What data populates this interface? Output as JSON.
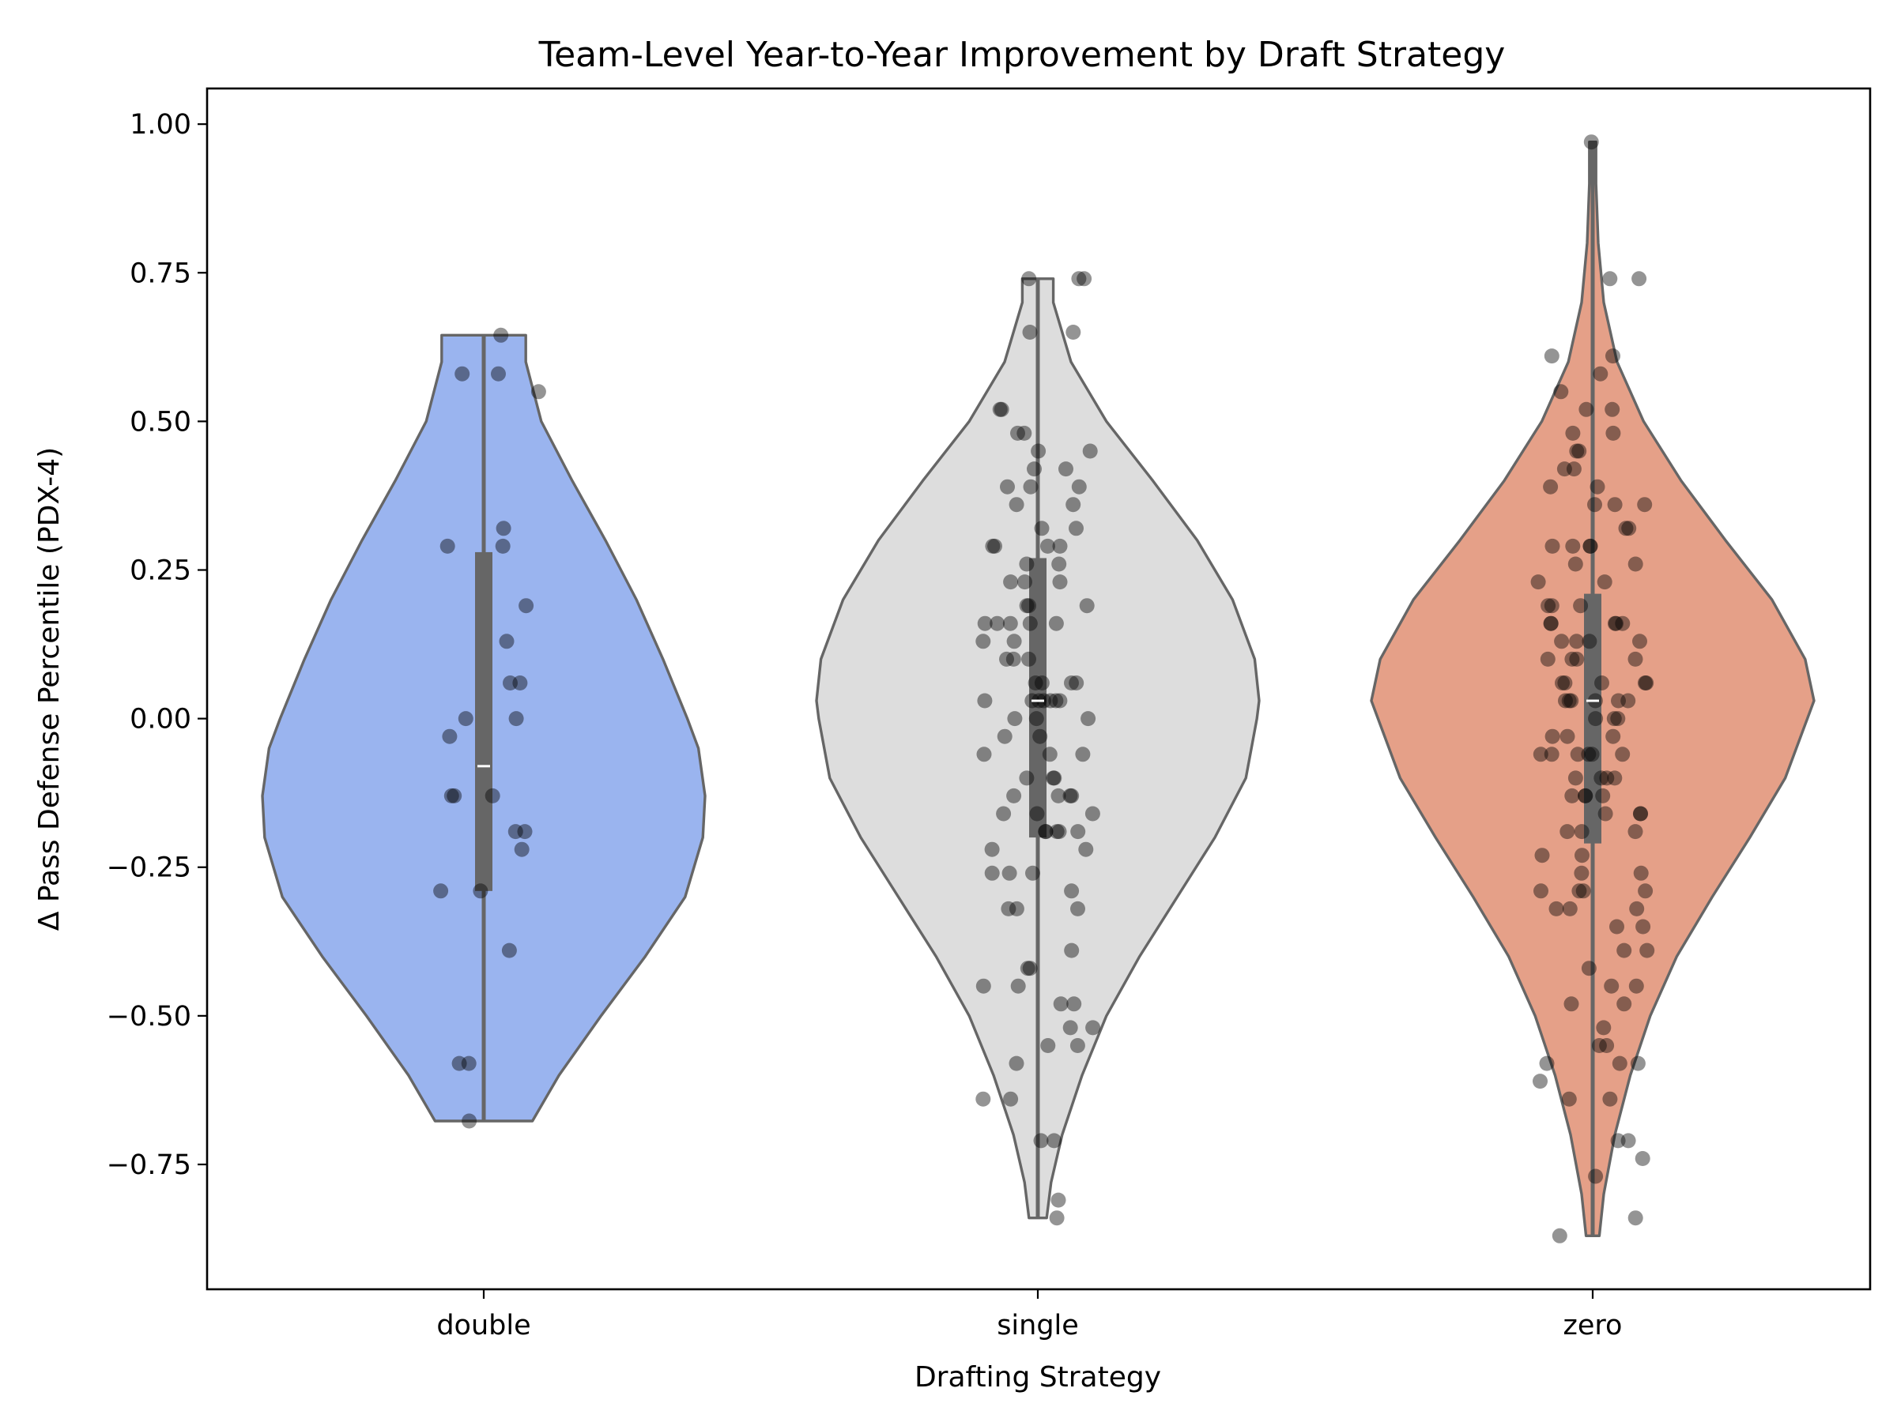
{
  "chart_data": {
    "type": "violin",
    "title": "Team-Level Year-to-Year Improvement by Draft Strategy",
    "xlabel": "Drafting Strategy",
    "ylabel": "Δ Pass Defense Percentile (PDX-4)",
    "ylim": [
      -0.96,
      1.06
    ],
    "yticks": [
      -0.75,
      -0.5,
      -0.25,
      0.0,
      0.25,
      0.5,
      0.75,
      1.0
    ],
    "ytick_labels": [
      "−0.75",
      "−0.50",
      "−0.25",
      "0.00",
      "0.25",
      "0.50",
      "0.75",
      "1.00"
    ],
    "categories": [
      "double",
      "single",
      "zero"
    ],
    "grid": false,
    "series": [
      {
        "category": "double",
        "color": "#9ab4ef",
        "range": [
          -0.677,
          0.645
        ],
        "quartiles": [
          -0.29,
          0.28
        ],
        "median": -0.08,
        "density_shape": [
          [
            -0.677,
            0.22
          ],
          [
            -0.6,
            0.34
          ],
          [
            -0.5,
            0.53
          ],
          [
            -0.4,
            0.73
          ],
          [
            -0.3,
            0.91
          ],
          [
            -0.2,
            0.99
          ],
          [
            -0.13,
            1.0
          ],
          [
            -0.05,
            0.97
          ],
          [
            0.0,
            0.92
          ],
          [
            0.1,
            0.81
          ],
          [
            0.2,
            0.69
          ],
          [
            0.3,
            0.55
          ],
          [
            0.4,
            0.4
          ],
          [
            0.5,
            0.26
          ],
          [
            0.6,
            0.19
          ],
          [
            0.645,
            0.19
          ]
        ],
        "points": [
          0.645,
          0.58,
          0.58,
          0.55,
          0.32,
          0.29,
          0.29,
          0.19,
          0.13,
          0.06,
          0.06,
          0.0,
          0.0,
          -0.03,
          -0.13,
          -0.13,
          -0.13,
          -0.19,
          -0.19,
          -0.22,
          -0.29,
          -0.29,
          -0.39,
          -0.58,
          -0.58,
          -0.677
        ]
      },
      {
        "category": "single",
        "color": "#dddddd",
        "range": [
          -0.84,
          0.74
        ],
        "quartiles": [
          -0.2,
          0.27
        ],
        "median": 0.03,
        "density_shape": [
          [
            -0.84,
            0.04
          ],
          [
            -0.78,
            0.06
          ],
          [
            -0.7,
            0.11
          ],
          [
            -0.6,
            0.2
          ],
          [
            -0.5,
            0.31
          ],
          [
            -0.4,
            0.46
          ],
          [
            -0.3,
            0.63
          ],
          [
            -0.2,
            0.8
          ],
          [
            -0.1,
            0.94
          ],
          [
            0.0,
            0.99
          ],
          [
            0.03,
            1.0
          ],
          [
            0.1,
            0.98
          ],
          [
            0.2,
            0.88
          ],
          [
            0.3,
            0.72
          ],
          [
            0.4,
            0.52
          ],
          [
            0.5,
            0.31
          ],
          [
            0.6,
            0.15
          ],
          [
            0.7,
            0.07
          ],
          [
            0.74,
            0.07
          ]
        ],
        "points": [
          0.74,
          0.74,
          0.74,
          0.65,
          0.65,
          0.52,
          0.52,
          0.48,
          0.48,
          0.45,
          0.45,
          0.42,
          0.42,
          0.39,
          0.39,
          0.39,
          0.36,
          0.36,
          0.32,
          0.32,
          0.29,
          0.29,
          0.29,
          0.29,
          0.26,
          0.26,
          0.23,
          0.23,
          0.23,
          0.19,
          0.19,
          0.19,
          0.16,
          0.16,
          0.16,
          0.16,
          0.16,
          0.13,
          0.13,
          0.1,
          0.1,
          0.1,
          0.06,
          0.06,
          0.06,
          0.06,
          0.03,
          0.03,
          0.03,
          0.03,
          0.03,
          0.03,
          0.03,
          0.0,
          0.0,
          0.0,
          -0.03,
          -0.03,
          -0.06,
          -0.06,
          -0.06,
          -0.1,
          -0.1,
          -0.1,
          -0.13,
          -0.13,
          -0.13,
          -0.13,
          -0.16,
          -0.16,
          -0.16,
          -0.19,
          -0.19,
          -0.19,
          -0.19,
          -0.19,
          -0.22,
          -0.22,
          -0.26,
          -0.26,
          -0.26,
          -0.29,
          -0.32,
          -0.32,
          -0.32,
          -0.39,
          -0.42,
          -0.42,
          -0.45,
          -0.45,
          -0.48,
          -0.48,
          -0.52,
          -0.52,
          -0.55,
          -0.55,
          -0.58,
          -0.64,
          -0.64,
          -0.71,
          -0.71,
          -0.81,
          -0.84
        ]
      },
      {
        "category": "zero",
        "color": "#e5a088",
        "range": [
          -0.87,
          0.97
        ],
        "quartiles": [
          -0.21,
          0.21
        ],
        "median": 0.03,
        "density_shape": [
          [
            -0.87,
            0.03
          ],
          [
            -0.8,
            0.05
          ],
          [
            -0.7,
            0.1
          ],
          [
            -0.6,
            0.17
          ],
          [
            -0.5,
            0.26
          ],
          [
            -0.4,
            0.38
          ],
          [
            -0.3,
            0.54
          ],
          [
            -0.2,
            0.71
          ],
          [
            -0.1,
            0.87
          ],
          [
            0.0,
            0.97
          ],
          [
            0.03,
            1.0
          ],
          [
            0.1,
            0.96
          ],
          [
            0.2,
            0.81
          ],
          [
            0.3,
            0.6
          ],
          [
            0.4,
            0.4
          ],
          [
            0.5,
            0.23
          ],
          [
            0.6,
            0.11
          ],
          [
            0.7,
            0.05
          ],
          [
            0.8,
            0.025
          ],
          [
            0.9,
            0.015
          ],
          [
            0.97,
            0.015
          ]
        ],
        "points": [
          0.97,
          0.74,
          0.74,
          0.61,
          0.61,
          0.58,
          0.55,
          0.52,
          0.52,
          0.48,
          0.48,
          0.45,
          0.45,
          0.42,
          0.42,
          0.39,
          0.39,
          0.36,
          0.36,
          0.36,
          0.32,
          0.32,
          0.29,
          0.29,
          0.29,
          0.29,
          0.26,
          0.26,
          0.23,
          0.23,
          0.19,
          0.19,
          0.19,
          0.16,
          0.16,
          0.16,
          0.16,
          0.16,
          0.13,
          0.13,
          0.13,
          0.13,
          0.1,
          0.1,
          0.1,
          0.1,
          0.06,
          0.06,
          0.06,
          0.06,
          0.06,
          0.03,
          0.03,
          0.03,
          0.03,
          0.03,
          0.03,
          0.0,
          0.0,
          0.0,
          -0.03,
          -0.03,
          -0.03,
          -0.06,
          -0.06,
          -0.06,
          -0.06,
          -0.06,
          -0.06,
          -0.1,
          -0.1,
          -0.1,
          -0.1,
          -0.13,
          -0.13,
          -0.13,
          -0.13,
          -0.16,
          -0.16,
          -0.16,
          -0.19,
          -0.19,
          -0.19,
          -0.23,
          -0.23,
          -0.26,
          -0.26,
          -0.29,
          -0.29,
          -0.29,
          -0.29,
          -0.32,
          -0.32,
          -0.32,
          -0.35,
          -0.35,
          -0.39,
          -0.39,
          -0.42,
          -0.45,
          -0.45,
          -0.48,
          -0.48,
          -0.52,
          -0.55,
          -0.55,
          -0.58,
          -0.58,
          -0.58,
          -0.61,
          -0.64,
          -0.64,
          -0.71,
          -0.71,
          -0.74,
          -0.77,
          -0.84,
          -0.87
        ]
      }
    ],
    "point_color": "#000000",
    "point_alpha": 0.42,
    "outline_color": "#666666",
    "box_color": "#666666",
    "median_color": "#ffffff"
  }
}
